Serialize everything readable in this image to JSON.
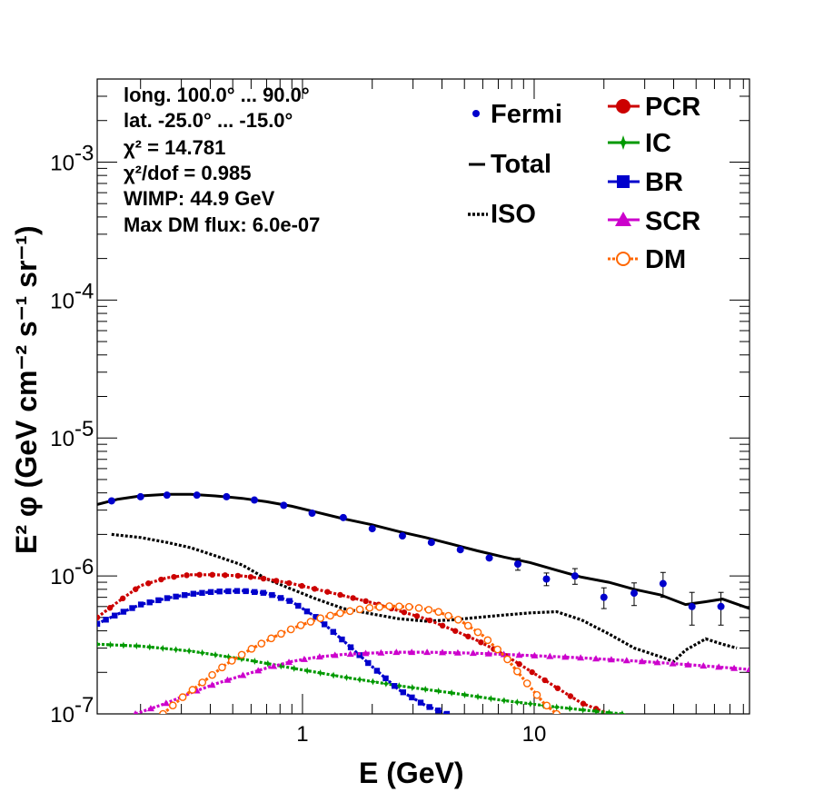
{
  "chart_data": {
    "type": "line",
    "xlabel": "E (GeV)",
    "ylabel": "E² φ (GeV cm⁻² s⁻¹ sr⁻¹)",
    "x_scale": "log",
    "y_scale": "log",
    "xlim": [
      0.13,
      85
    ],
    "ylim": [
      1e-07,
      0.004
    ],
    "x_ticks": [
      {
        "value": 1,
        "label": "1"
      },
      {
        "value": 10,
        "label": "10"
      }
    ],
    "y_ticks": [
      {
        "value": 1e-07,
        "base": "10",
        "exp": "-7"
      },
      {
        "value": 1e-06,
        "base": "10",
        "exp": "-6"
      },
      {
        "value": 1e-05,
        "base": "10",
        "exp": "-5"
      },
      {
        "value": 0.0001,
        "base": "10",
        "exp": "-4"
      },
      {
        "value": 0.001,
        "base": "10",
        "exp": "-3"
      }
    ],
    "stats": [
      "long. 100.0° ... 90.0°",
      "lat. -25.0° ... -15.0°",
      "χ² = 14.781",
      "χ²/dof = 0.985",
      "WIMP: 44.9 GeV",
      "Max DM flux: 6.0e-07"
    ],
    "legend_left": [
      {
        "name": "Fermi",
        "color": "#0000cc",
        "style": "point"
      },
      {
        "name": "Total",
        "color": "#000000",
        "style": "solid"
      },
      {
        "name": "ISO",
        "color": "#000000",
        "style": "dotted"
      }
    ],
    "legend_right": [
      {
        "name": "PCR",
        "color": "#cc0000",
        "style": "circle"
      },
      {
        "name": "IC",
        "color": "#009900",
        "style": "star"
      },
      {
        "name": "BR",
        "color": "#0000cc",
        "style": "square"
      },
      {
        "name": "SCR",
        "color": "#cc00cc",
        "style": "triangle"
      },
      {
        "name": "DM",
        "color": "#ff6600",
        "style": "open-circle"
      }
    ],
    "fermi": {
      "x": [
        0.15,
        0.2,
        0.26,
        0.35,
        0.47,
        0.62,
        0.83,
        1.1,
        1.5,
        2.0,
        2.7,
        3.6,
        4.8,
        6.4,
        8.5,
        11.3,
        15,
        20,
        27,
        36,
        48,
        64
      ],
      "y": [
        3.5e-06,
        3.75e-06,
        3.85e-06,
        3.85e-06,
        3.75e-06,
        3.55e-06,
        3.25e-06,
        2.85e-06,
        2.65e-06,
        2.2e-06,
        1.95e-06,
        1.75e-06,
        1.55e-06,
        1.35e-06,
        1.22e-06,
        9.5e-07,
        1e-06,
        7e-07,
        7.5e-07,
        8.8e-07,
        6e-07,
        6e-07
      ],
      "err": [
        0,
        0,
        0,
        0,
        0,
        0,
        0,
        0,
        0,
        0,
        0,
        0,
        0,
        0,
        1.2e-07,
        1e-07,
        1.3e-07,
        1.2e-07,
        1.4e-07,
        1.8e-07,
        1.6e-07,
        1.6e-07
      ]
    },
    "series": [
      {
        "name": "Total",
        "color": "#000000",
        "x": [
          0.13,
          0.16,
          0.2,
          0.26,
          0.33,
          0.42,
          0.55,
          0.7,
          0.9,
          1.15,
          1.5,
          2.0,
          2.6,
          3.4,
          4.4,
          5.7,
          7.4,
          9.6,
          12.5,
          16,
          21,
          27,
          35,
          45,
          55,
          65,
          85
        ],
        "y": [
          3.3e-06,
          3.6e-06,
          3.8e-06,
          3.9e-06,
          3.9e-06,
          3.8e-06,
          3.65e-06,
          3.45e-06,
          3.2e-06,
          2.9e-06,
          2.6e-06,
          2.35e-06,
          2.1e-06,
          1.9e-06,
          1.7e-06,
          1.52e-06,
          1.37e-06,
          1.25e-06,
          1.1e-06,
          9.8e-07,
          9e-07,
          8e-07,
          7.3e-07,
          6.2e-07,
          6.5e-07,
          6.8e-07,
          5.8e-07
        ]
      },
      {
        "name": "ISO",
        "color": "#000000",
        "x": [
          0.15,
          0.2,
          0.26,
          0.33,
          0.42,
          0.55,
          0.7,
          0.9,
          1.15,
          1.5,
          2.0,
          2.6,
          3.4,
          4.4,
          5.7,
          7.4,
          9.6,
          12.5,
          16,
          21,
          27,
          35,
          40,
          45,
          55,
          65,
          75
        ],
        "y": [
          2e-06,
          1.9e-06,
          1.75e-06,
          1.6e-06,
          1.4e-06,
          1.2e-06,
          9.5e-07,
          8e-07,
          6.8e-07,
          5.8e-07,
          5.3e-07,
          4.9e-07,
          4.7e-07,
          4.8e-07,
          5e-07,
          5.2e-07,
          5.4e-07,
          5.5e-07,
          4.8e-07,
          3.8e-07,
          3e-07,
          2.6e-07,
          2.4e-07,
          2.9e-07,
          3.5e-07,
          3.2e-07,
          3e-07
        ]
      },
      {
        "name": "PCR",
        "color": "#cc0000",
        "x": [
          0.13,
          0.16,
          0.2,
          0.26,
          0.33,
          0.42,
          0.55,
          0.7,
          0.9,
          1.15,
          1.5,
          2.0,
          2.6,
          3.4,
          4.4,
          5.7,
          7.4,
          9.6,
          12.5,
          16,
          21
        ],
        "y": [
          5e-07,
          6.5e-07,
          8.5e-07,
          9.7e-07,
          1.02e-06,
          1.02e-06,
          1e-06,
          9.5e-07,
          8.8e-07,
          8e-07,
          7.2e-07,
          6.4e-07,
          5.6e-07,
          4.9e-07,
          4.1e-07,
          3.4e-07,
          2.7e-07,
          2.05e-07,
          1.55e-07,
          1.2e-07,
          1e-07
        ]
      },
      {
        "name": "IC",
        "color": "#009900",
        "x": [
          0.13,
          0.2,
          0.33,
          0.55,
          0.9,
          1.5,
          2.6,
          4.4,
          7.4,
          12.5,
          21,
          24
        ],
        "y": [
          3.2e-07,
          3.1e-07,
          2.85e-07,
          2.5e-07,
          2.15e-07,
          1.85e-07,
          1.6e-07,
          1.42e-07,
          1.25e-07,
          1.12e-07,
          1.02e-07,
          1e-07
        ]
      },
      {
        "name": "BR",
        "color": "#0000cc",
        "x": [
          0.13,
          0.16,
          0.2,
          0.26,
          0.33,
          0.42,
          0.55,
          0.7,
          0.9,
          1.15,
          1.5,
          2.0,
          2.6,
          3.4,
          4.2
        ],
        "y": [
          4.5e-07,
          5.3e-07,
          6.2e-07,
          6.9e-07,
          7.4e-07,
          7.7e-07,
          7.8e-07,
          7.5e-07,
          6.5e-07,
          5e-07,
          3.4e-07,
          2.2e-07,
          1.5e-07,
          1.15e-07,
          1e-07
        ]
      },
      {
        "name": "SCR",
        "color": "#cc00cc",
        "x": [
          0.19,
          0.26,
          0.33,
          0.42,
          0.55,
          0.7,
          0.9,
          1.15,
          1.5,
          2.0,
          2.6,
          3.4,
          4.4,
          5.7,
          7.4,
          9.6,
          12.5,
          16,
          21,
          27,
          35,
          45,
          60,
          85
        ],
        "y": [
          1e-07,
          1.2e-07,
          1.42e-07,
          1.65e-07,
          1.9e-07,
          2.15e-07,
          2.4e-07,
          2.58e-07,
          2.7e-07,
          2.76e-07,
          2.8e-07,
          2.8e-07,
          2.78e-07,
          2.75e-07,
          2.7e-07,
          2.65e-07,
          2.6e-07,
          2.55e-07,
          2.48e-07,
          2.42e-07,
          2.35e-07,
          2.28e-07,
          2.2e-07,
          2.1e-07
        ]
      },
      {
        "name": "DM",
        "color": "#ff6600",
        "x": [
          0.25,
          0.3,
          0.38,
          0.47,
          0.6,
          0.75,
          0.95,
          1.2,
          1.5,
          1.9,
          2.4,
          3.0,
          3.8,
          4.8,
          6.0,
          7.5,
          9.5,
          11.0,
          12.5
        ],
        "y": [
          1e-07,
          1.3e-07,
          1.75e-07,
          2.3e-07,
          2.95e-07,
          3.6e-07,
          4.3e-07,
          4.95e-07,
          5.45e-07,
          5.85e-07,
          6.05e-07,
          5.95e-07,
          5.55e-07,
          4.75e-07,
          3.7e-07,
          2.6e-07,
          1.6e-07,
          1.2e-07,
          1e-07
        ]
      }
    ]
  }
}
